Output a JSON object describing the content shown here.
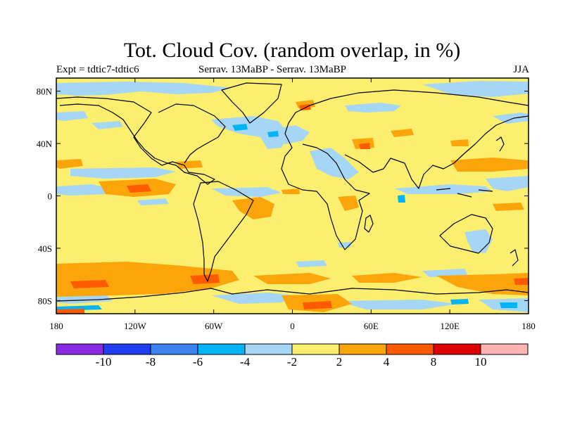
{
  "title": "Tot. Cloud Cov. (random overlap, in %)",
  "subtitle": {
    "left": "Expt = tdtic7-tdtic6",
    "center": "Serrav.   13MaBP - Serrav.   13MaBP",
    "right": "JJA"
  },
  "map": {
    "projection": "cylindrical-equidistant",
    "lon_range": [
      -180,
      180
    ],
    "lat_range": [
      -90,
      90
    ],
    "lat_ticks": [
      {
        "value": 80,
        "label": "80N"
      },
      {
        "value": 40,
        "label": "40N"
      },
      {
        "value": 0,
        "label": "0"
      },
      {
        "value": -40,
        "label": "40S"
      },
      {
        "value": -80,
        "label": "80S"
      }
    ],
    "lon_ticks": [
      {
        "value": -180,
        "label": "180"
      },
      {
        "value": -120,
        "label": "120W"
      },
      {
        "value": -60,
        "label": "60W"
      },
      {
        "value": 0,
        "label": "0"
      },
      {
        "value": 60,
        "label": "60E"
      },
      {
        "value": 120,
        "label": "120E"
      },
      {
        "value": 180,
        "label": "180"
      }
    ],
    "background_color": "#fcee6e",
    "coastline_color": "#000000"
  },
  "colorbar": {
    "colors": [
      "#8a2be2",
      "#1f3ff0",
      "#3b82f0",
      "#00b4f5",
      "#a6d6f5",
      "#fcee6e",
      "#fca50a",
      "#ff5a00",
      "#dc0000",
      "#ffb4b4"
    ],
    "labels": [
      "-10",
      "-8",
      "-6",
      "-4",
      "-2",
      "2",
      "4",
      "8",
      "10"
    ]
  }
}
